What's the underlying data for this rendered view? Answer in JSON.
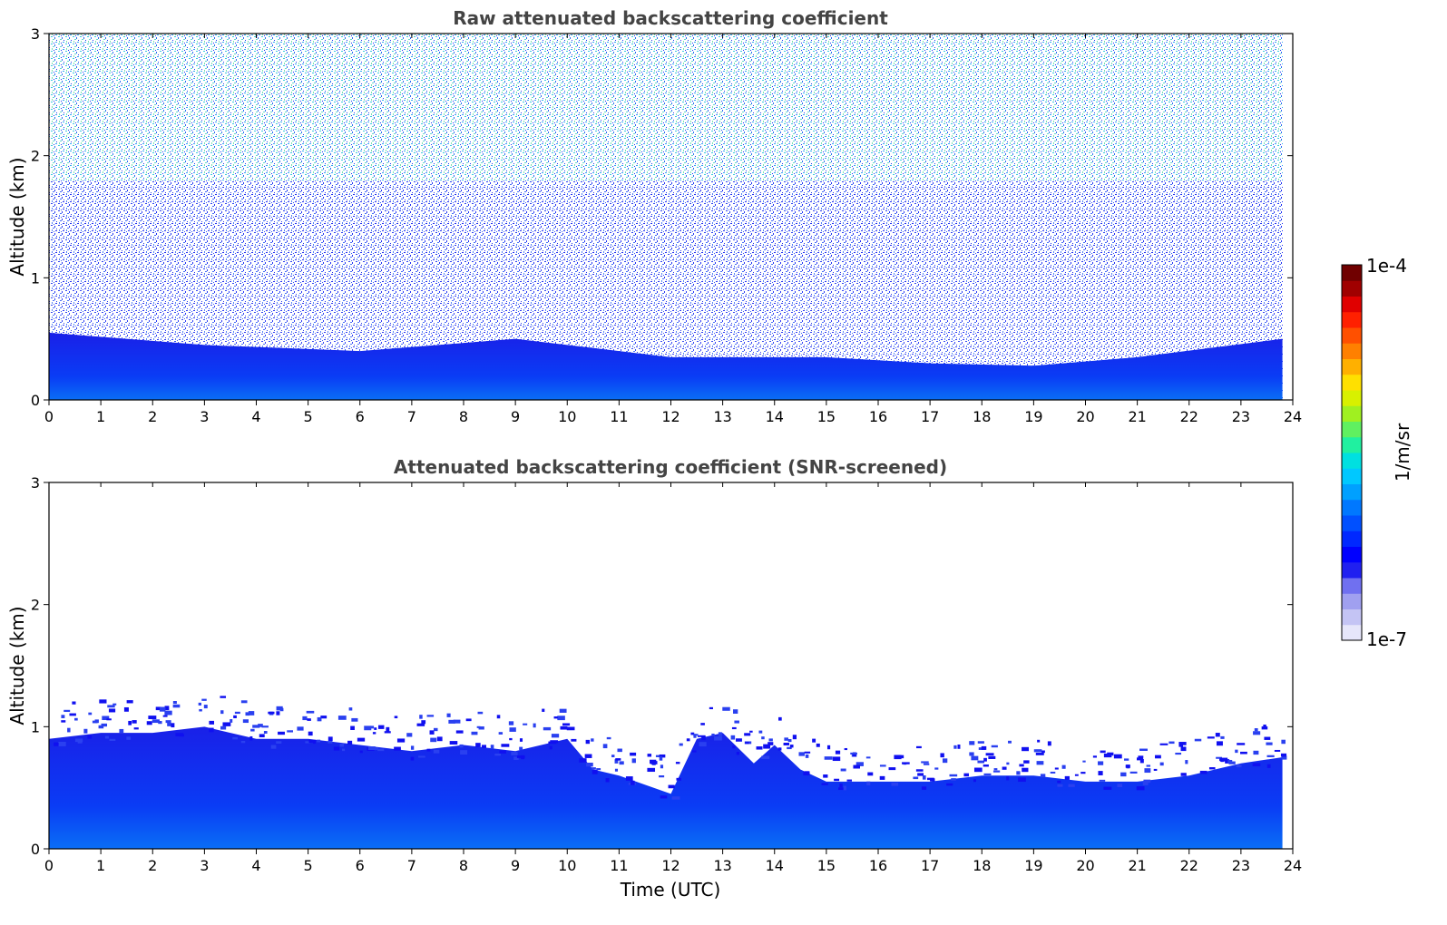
{
  "chart_data": [
    {
      "type": "heatmap",
      "title": "Raw attenuated backscattering coefficient",
      "xlabel": "",
      "ylabel": "Altitude (km)",
      "xlim": [
        0,
        24
      ],
      "ylim": [
        0,
        3
      ],
      "xticks": [
        "0",
        "1",
        "2",
        "3",
        "4",
        "5",
        "6",
        "7",
        "8",
        "9",
        "10",
        "11",
        "12",
        "13",
        "14",
        "15",
        "16",
        "17",
        "18",
        "19",
        "20",
        "21",
        "22",
        "23",
        "24"
      ],
      "yticks": [
        "0",
        "1",
        "2",
        "3"
      ],
      "data_end_time": 23.8,
      "description_of_values": {
        "dense_layer_top_km": [
          [
            0,
            0.55
          ],
          [
            3,
            0.45
          ],
          [
            6,
            0.4
          ],
          [
            9,
            0.5
          ],
          [
            10,
            0.45
          ],
          [
            12,
            0.35
          ],
          [
            15,
            0.35
          ],
          [
            17,
            0.3
          ],
          [
            19,
            0.28
          ],
          [
            21,
            0.35
          ],
          [
            23.8,
            0.5
          ]
        ],
        "noise_level": "high above boundary layer"
      }
    },
    {
      "type": "heatmap",
      "title": "Attenuated backscattering coefficient (SNR-screened)",
      "xlabel": "Time (UTC)",
      "ylabel": "Altitude (km)",
      "xlim": [
        0,
        24
      ],
      "ylim": [
        0,
        3
      ],
      "xticks": [
        "0",
        "1",
        "2",
        "3",
        "4",
        "5",
        "6",
        "7",
        "8",
        "9",
        "10",
        "11",
        "12",
        "13",
        "14",
        "15",
        "16",
        "17",
        "18",
        "19",
        "20",
        "21",
        "22",
        "23",
        "24"
      ],
      "yticks": [
        "0",
        "1",
        "2",
        "3"
      ],
      "data_end_time": 23.8,
      "layer_top_km": [
        [
          0,
          0.9
        ],
        [
          1,
          0.95
        ],
        [
          2,
          0.95
        ],
        [
          3,
          1.0
        ],
        [
          4,
          0.9
        ],
        [
          5,
          0.9
        ],
        [
          6,
          0.85
        ],
        [
          7,
          0.8
        ],
        [
          8,
          0.85
        ],
        [
          9,
          0.8
        ],
        [
          10,
          0.9
        ],
        [
          10.5,
          0.65
        ],
        [
          11,
          0.6
        ],
        [
          12,
          0.45
        ],
        [
          12.5,
          0.9
        ],
        [
          13,
          0.95
        ],
        [
          13.6,
          0.7
        ],
        [
          14,
          0.85
        ],
        [
          14.5,
          0.65
        ],
        [
          15,
          0.55
        ],
        [
          16,
          0.55
        ],
        [
          17,
          0.55
        ],
        [
          18,
          0.6
        ],
        [
          19,
          0.6
        ],
        [
          20,
          0.55
        ],
        [
          21,
          0.55
        ],
        [
          22,
          0.6
        ],
        [
          23,
          0.7
        ],
        [
          23.8,
          0.75
        ]
      ]
    }
  ],
  "colorbar": {
    "max_label": "1e-4",
    "min_label": "1e-7",
    "unit_label": "1/m/sr",
    "colors": [
      "#e6e6fa",
      "#c4c4f4",
      "#a0a0f0",
      "#7070f0",
      "#2020f0",
      "#0000ff",
      "#0028ff",
      "#0050ff",
      "#0078ff",
      "#00a0ff",
      "#00c8ff",
      "#00e0e0",
      "#20f0a0",
      "#60f060",
      "#a0f020",
      "#d8f000",
      "#ffe000",
      "#ffb000",
      "#ff8000",
      "#ff5000",
      "#ff2000",
      "#e00000",
      "#a00000",
      "#700000"
    ]
  }
}
